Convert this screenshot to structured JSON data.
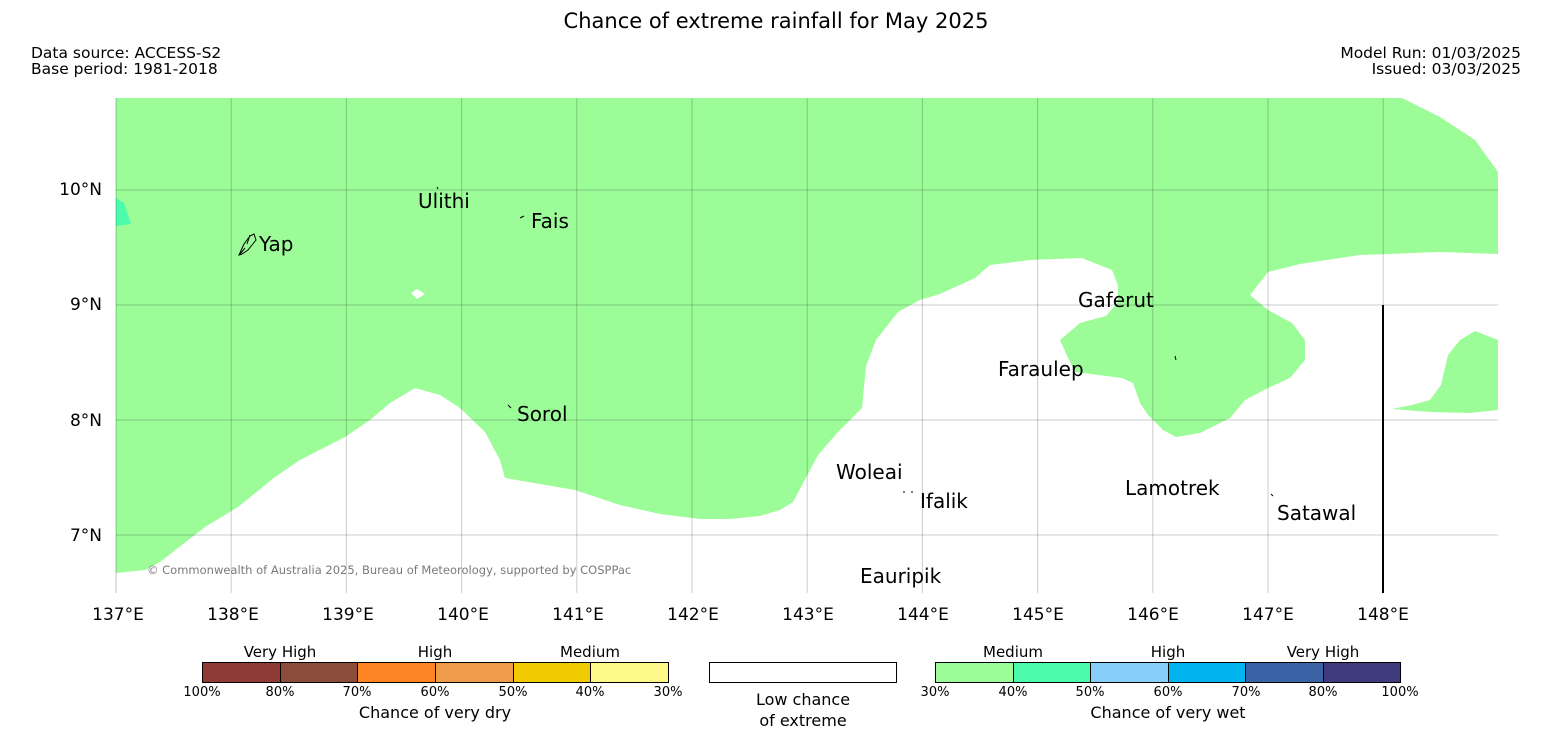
{
  "title": "Chance of extreme rainfall for May 2025",
  "header_left": {
    "data_source": "Data source: ACCESS-S2",
    "base_period": "Base period: 1981-2018"
  },
  "header_right": {
    "model_run": "Model Run: 01/03/2025",
    "issued": "Issued: 03/03/2025"
  },
  "map": {
    "lon_labels": [
      "137°E",
      "138°E",
      "139°E",
      "140°E",
      "141°E",
      "142°E",
      "143°E",
      "144°E",
      "145°E",
      "146°E",
      "147°E",
      "148°E"
    ],
    "lat_labels": [
      "10°N",
      "9°N",
      "8°N",
      "7°N"
    ],
    "places": [
      "Yap",
      "Ulithi",
      "Fais",
      "Sorol",
      "Gaferut",
      "Faraulep",
      "Woleai",
      "Ifalik",
      "Lamotrek",
      "Satawal",
      "Eauripik"
    ],
    "copyright": "© Commonwealth of Australia 2025, Bureau of Meteorology, supported by COSPPac",
    "colors": {
      "medium_wet": "#9cfc98",
      "wet_40_50": "#4cfcac",
      "land": "#000000"
    }
  },
  "legend_dry": {
    "categories": [
      "Very High",
      "High",
      "Medium"
    ],
    "ticks": [
      "100%",
      "80%",
      "70%",
      "60%",
      "50%",
      "40%",
      "30%"
    ],
    "colors": [
      "#8f3a35",
      "#8b4c3a",
      "#fe8424",
      "#ee9c4c",
      "#f1cb02",
      "#fdf887"
    ],
    "title": "Chance of very dry"
  },
  "legend_low": {
    "line1": "Low chance",
    "line2": "of extreme",
    "color": "#ffffff"
  },
  "legend_wet": {
    "categories": [
      "Medium",
      "High",
      "Very High"
    ],
    "ticks": [
      "30%",
      "40%",
      "50%",
      "60%",
      "70%",
      "80%",
      "100%"
    ],
    "colors": [
      "#9cfc98",
      "#4cfcac",
      "#88cefa",
      "#01b3ef",
      "#3963a5",
      "#3f3b7c"
    ],
    "title": "Chance of very wet"
  }
}
